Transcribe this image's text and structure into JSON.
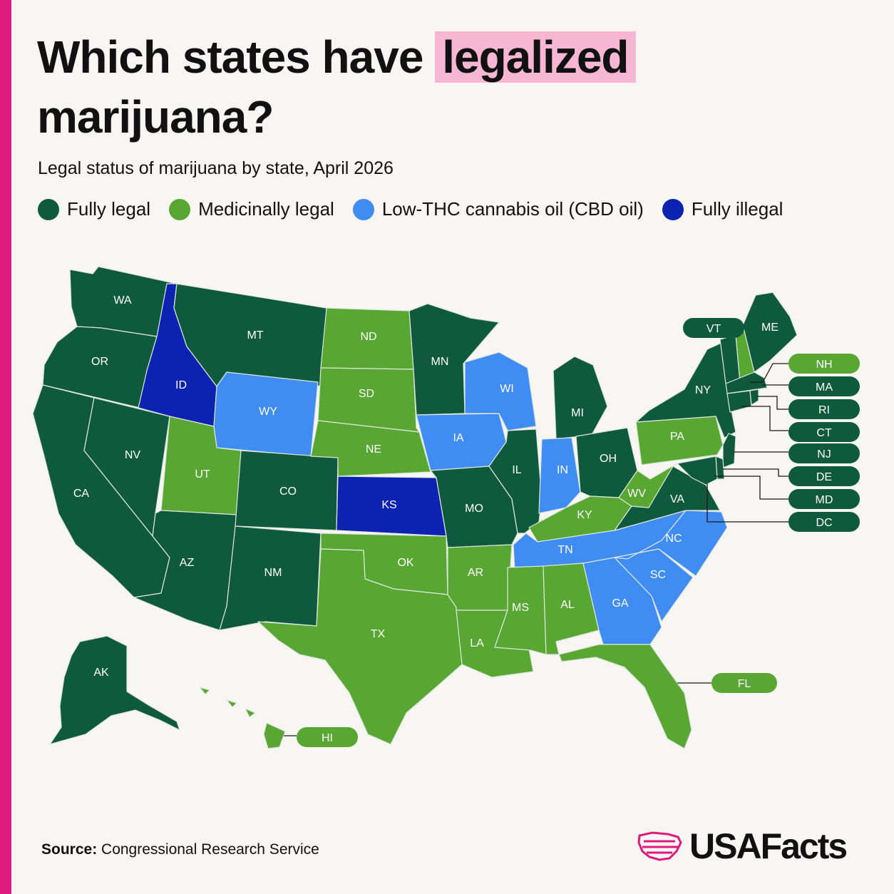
{
  "header": {
    "title_part1": "Which states have ",
    "title_highlight": "legalized",
    "title_part2": "marijuana?",
    "subtitle": "Legal status of marijuana by state, April 2026"
  },
  "legend": [
    {
      "label": "Fully legal",
      "color": "#0f5a3f"
    },
    {
      "label": "Medicinally legal",
      "color": "#58a733"
    },
    {
      "label": "Low-THC cannabis oil (CBD oil)",
      "color": "#3f8cf2"
    },
    {
      "label": "Fully illegal",
      "color": "#0c22b0"
    }
  ],
  "colors": {
    "fully_legal": "#0f5a3f",
    "medicinal": "#58a733",
    "cbd": "#3f8cf2",
    "illegal": "#0c22b0",
    "accent": "#e0197d",
    "highlight": "#f7b6d2"
  },
  "states": {
    "WA": "fully_legal",
    "OR": "fully_legal",
    "CA": "fully_legal",
    "NV": "fully_legal",
    "ID": "illegal",
    "MT": "fully_legal",
    "WY": "cbd",
    "UT": "medicinal",
    "AZ": "fully_legal",
    "CO": "fully_legal",
    "NM": "fully_legal",
    "ND": "medicinal",
    "SD": "medicinal",
    "NE": "medicinal",
    "KS": "illegal",
    "OK": "medicinal",
    "TX": "medicinal",
    "MN": "fully_legal",
    "IA": "cbd",
    "MO": "fully_legal",
    "AR": "medicinal",
    "LA": "medicinal",
    "WI": "cbd",
    "IL": "fully_legal",
    "MI": "fully_legal",
    "IN": "cbd",
    "OH": "fully_legal",
    "KY": "medicinal",
    "TN": "cbd",
    "MS": "medicinal",
    "AL": "medicinal",
    "GA": "cbd",
    "FL": "medicinal",
    "SC": "cbd",
    "NC": "cbd",
    "VA": "fully_legal",
    "WV": "medicinal",
    "PA": "medicinal",
    "NY": "fully_legal",
    "VT": "fully_legal",
    "NH": "medicinal",
    "ME": "fully_legal",
    "MA": "fully_legal",
    "RI": "fully_legal",
    "CT": "fully_legal",
    "NJ": "fully_legal",
    "DE": "fully_legal",
    "MD": "fully_legal",
    "DC": "fully_legal",
    "AK": "fully_legal",
    "HI": "medicinal"
  },
  "callouts": [
    "VT",
    "NH",
    "MA",
    "RI",
    "CT",
    "NJ",
    "DE",
    "MD",
    "DC",
    "FL",
    "HI"
  ],
  "footer": {
    "source_label": "Source:",
    "source_text": " Congressional Research Service",
    "brand": "USAFacts"
  }
}
